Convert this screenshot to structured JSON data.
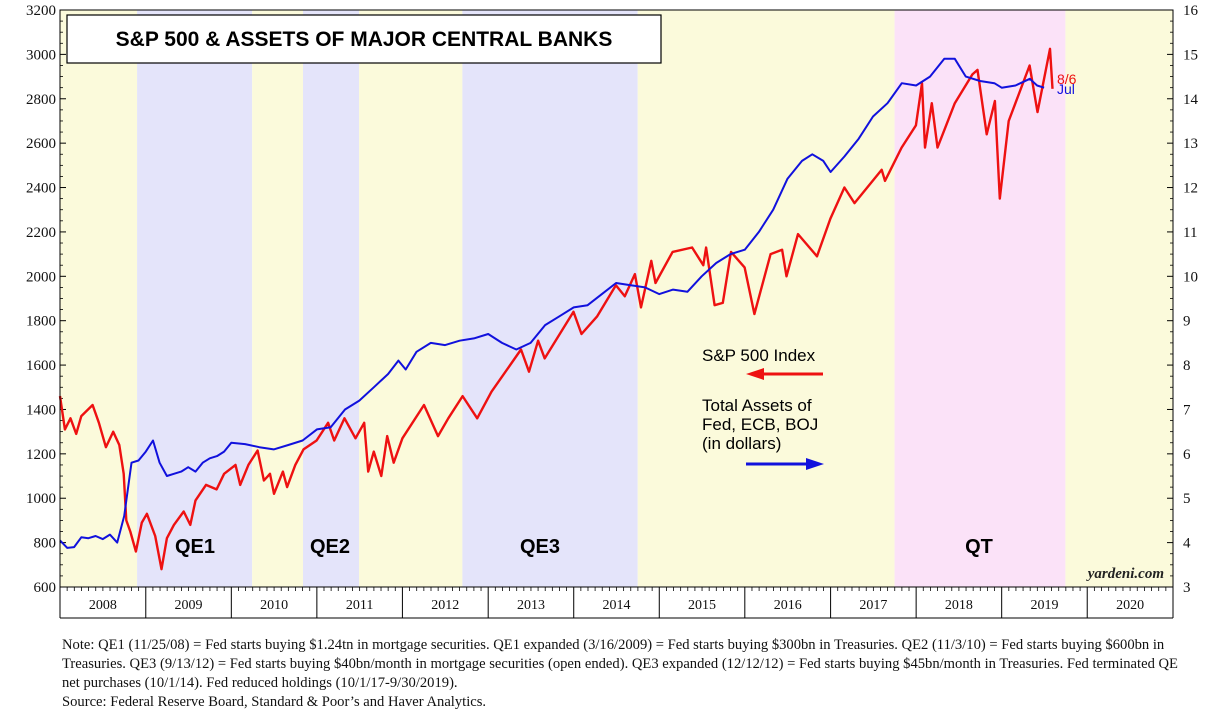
{
  "chart_data": {
    "type": "line",
    "title": "S&P 500 & ASSETS OF MAJOR CENTRAL BANKS",
    "credit": "yardeni.com",
    "x_range": [
      "2008-01-01",
      "2021-01-01"
    ],
    "x_tick_labels": [
      "2008",
      "2009",
      "2010",
      "2011",
      "2012",
      "2013",
      "2014",
      "2015",
      "2016",
      "2017",
      "2018",
      "2019",
      "2020"
    ],
    "left_axis": {
      "ylim": [
        600,
        3200
      ],
      "ticks": [
        600,
        800,
        1000,
        1200,
        1400,
        1600,
        1800,
        2000,
        2200,
        2400,
        2600,
        2800,
        3000,
        3200
      ]
    },
    "right_axis": {
      "ylim": [
        3,
        16
      ],
      "ticks": [
        3,
        4,
        5,
        6,
        7,
        8,
        9,
        10,
        11,
        12,
        13,
        14,
        15,
        16
      ]
    },
    "shaded_periods": [
      {
        "label": "",
        "start": "2008-01-01",
        "end": "2008-11-25",
        "color": "#fbfadb"
      },
      {
        "label": "QE1",
        "start": "2008-11-25",
        "end": "2010-03-31",
        "color": "#e4e4fa"
      },
      {
        "label": "",
        "start": "2010-03-31",
        "end": "2010-11-03",
        "color": "#fbfadb"
      },
      {
        "label": "QE2",
        "start": "2010-11-03",
        "end": "2011-06-30",
        "color": "#e4e4fa"
      },
      {
        "label": "",
        "start": "2011-06-30",
        "end": "2012-09-13",
        "color": "#fbfadb"
      },
      {
        "label": "QE3",
        "start": "2012-09-13",
        "end": "2014-10-01",
        "color": "#e4e4fa"
      },
      {
        "label": "",
        "start": "2014-10-01",
        "end": "2017-10-01",
        "color": "#fbfadb"
      },
      {
        "label": "QT",
        "start": "2017-10-01",
        "end": "2019-09-30",
        "color": "#fbe2f8"
      },
      {
        "label": "",
        "start": "2019-09-30",
        "end": "2021-01-01",
        "color": "#fbfadb"
      }
    ],
    "series": [
      {
        "name": "S&P 500 Index",
        "axis": "left",
        "color": "#ee1111",
        "end_label": "8/6",
        "points": [
          [
            "2008-01-01",
            1460
          ],
          [
            "2008-01-22",
            1310
          ],
          [
            "2008-02-15",
            1360
          ],
          [
            "2008-03-10",
            1290
          ],
          [
            "2008-04-01",
            1370
          ],
          [
            "2008-05-19",
            1420
          ],
          [
            "2008-06-15",
            1340
          ],
          [
            "2008-07-15",
            1230
          ],
          [
            "2008-08-15",
            1300
          ],
          [
            "2008-09-10",
            1240
          ],
          [
            "2008-09-29",
            1110
          ],
          [
            "2008-10-10",
            900
          ],
          [
            "2008-10-27",
            850
          ],
          [
            "2008-11-20",
            760
          ],
          [
            "2008-12-15",
            890
          ],
          [
            "2009-01-06",
            930
          ],
          [
            "2009-02-10",
            830
          ],
          [
            "2009-03-09",
            680
          ],
          [
            "2009-04-01",
            820
          ],
          [
            "2009-05-01",
            880
          ],
          [
            "2009-06-12",
            940
          ],
          [
            "2009-07-10",
            880
          ],
          [
            "2009-08-01",
            990
          ],
          [
            "2009-09-15",
            1060
          ],
          [
            "2009-10-30",
            1040
          ],
          [
            "2009-12-01",
            1110
          ],
          [
            "2010-01-19",
            1150
          ],
          [
            "2010-02-08",
            1060
          ],
          [
            "2010-03-15",
            1150
          ],
          [
            "2010-04-23",
            1215
          ],
          [
            "2010-05-20",
            1080
          ],
          [
            "2010-06-15",
            1110
          ],
          [
            "2010-07-02",
            1020
          ],
          [
            "2010-08-09",
            1120
          ],
          [
            "2010-08-27",
            1050
          ],
          [
            "2010-10-01",
            1150
          ],
          [
            "2010-11-05",
            1220
          ],
          [
            "2010-12-31",
            1260
          ],
          [
            "2011-02-18",
            1340
          ],
          [
            "2011-03-16",
            1260
          ],
          [
            "2011-04-29",
            1360
          ],
          [
            "2011-06-15",
            1270
          ],
          [
            "2011-07-22",
            1340
          ],
          [
            "2011-08-08",
            1120
          ],
          [
            "2011-09-01",
            1210
          ],
          [
            "2011-10-03",
            1100
          ],
          [
            "2011-10-28",
            1280
          ],
          [
            "2011-11-25",
            1160
          ],
          [
            "2012-01-01",
            1270
          ],
          [
            "2012-04-02",
            1420
          ],
          [
            "2012-06-01",
            1280
          ],
          [
            "2012-07-15",
            1360
          ],
          [
            "2012-09-14",
            1460
          ],
          [
            "2012-11-15",
            1360
          ],
          [
            "2013-01-15",
            1480
          ],
          [
            "2013-05-21",
            1670
          ],
          [
            "2013-06-24",
            1570
          ],
          [
            "2013-08-02",
            1710
          ],
          [
            "2013-08-30",
            1630
          ],
          [
            "2013-12-31",
            1840
          ],
          [
            "2014-02-03",
            1740
          ],
          [
            "2014-04-11",
            1820
          ],
          [
            "2014-06-30",
            1960
          ],
          [
            "2014-08-07",
            1910
          ],
          [
            "2014-09-19",
            2010
          ],
          [
            "2014-10-15",
            1860
          ],
          [
            "2014-11-28",
            2070
          ],
          [
            "2014-12-16",
            1970
          ],
          [
            "2015-02-27",
            2110
          ],
          [
            "2015-05-21",
            2130
          ],
          [
            "2015-07-08",
            2050
          ],
          [
            "2015-07-20",
            2130
          ],
          [
            "2015-08-25",
            1870
          ],
          [
            "2015-09-29",
            1880
          ],
          [
            "2015-11-03",
            2110
          ],
          [
            "2015-12-31",
            2040
          ],
          [
            "2016-02-11",
            1830
          ],
          [
            "2016-04-20",
            2100
          ],
          [
            "2016-06-08",
            2120
          ],
          [
            "2016-06-27",
            2000
          ],
          [
            "2016-08-15",
            2190
          ],
          [
            "2016-11-04",
            2090
          ],
          [
            "2016-12-31",
            2260
          ],
          [
            "2017-03-01",
            2400
          ],
          [
            "2017-04-13",
            2330
          ],
          [
            "2017-08-07",
            2480
          ],
          [
            "2017-08-21",
            2430
          ],
          [
            "2017-10-31",
            2580
          ],
          [
            "2017-12-31",
            2680
          ],
          [
            "2018-01-26",
            2870
          ],
          [
            "2018-02-08",
            2580
          ],
          [
            "2018-03-09",
            2780
          ],
          [
            "2018-04-02",
            2580
          ],
          [
            "2018-06-15",
            2780
          ],
          [
            "2018-08-29",
            2910
          ],
          [
            "2018-09-20",
            2930
          ],
          [
            "2018-10-29",
            2640
          ],
          [
            "2018-12-03",
            2790
          ],
          [
            "2018-12-24",
            2350
          ],
          [
            "2019-01-31",
            2700
          ],
          [
            "2019-04-30",
            2950
          ],
          [
            "2019-06-03",
            2740
          ],
          [
            "2019-07-26",
            3025
          ],
          [
            "2019-08-06",
            2845
          ]
        ]
      },
      {
        "name": "Total Assets of Fed, ECB, BOJ (in dollars)",
        "axis": "right",
        "color": "#1111dd",
        "end_label": "Jul",
        "points": [
          [
            "2008-01-01",
            4.05
          ],
          [
            "2008-02-01",
            3.88
          ],
          [
            "2008-03-01",
            3.9
          ],
          [
            "2008-04-01",
            4.12
          ],
          [
            "2008-05-01",
            4.1
          ],
          [
            "2008-06-01",
            4.15
          ],
          [
            "2008-07-01",
            4.08
          ],
          [
            "2008-08-01",
            4.18
          ],
          [
            "2008-09-01",
            4.0
          ],
          [
            "2008-10-01",
            4.6
          ],
          [
            "2008-11-01",
            5.8
          ],
          [
            "2008-12-01",
            5.85
          ],
          [
            "2009-01-01",
            6.05
          ],
          [
            "2009-02-01",
            6.3
          ],
          [
            "2009-03-01",
            5.8
          ],
          [
            "2009-04-01",
            5.5
          ],
          [
            "2009-05-01",
            5.55
          ],
          [
            "2009-06-01",
            5.6
          ],
          [
            "2009-07-01",
            5.7
          ],
          [
            "2009-08-01",
            5.6
          ],
          [
            "2009-09-01",
            5.8
          ],
          [
            "2009-10-01",
            5.9
          ],
          [
            "2009-11-01",
            5.95
          ],
          [
            "2009-12-01",
            6.05
          ],
          [
            "2010-01-01",
            6.25
          ],
          [
            "2010-03-01",
            6.22
          ],
          [
            "2010-05-01",
            6.15
          ],
          [
            "2010-07-01",
            6.1
          ],
          [
            "2010-09-01",
            6.2
          ],
          [
            "2010-11-01",
            6.3
          ],
          [
            "2011-01-01",
            6.55
          ],
          [
            "2011-03-01",
            6.6
          ],
          [
            "2011-05-01",
            7.0
          ],
          [
            "2011-07-01",
            7.2
          ],
          [
            "2011-09-01",
            7.5
          ],
          [
            "2011-11-01",
            7.8
          ],
          [
            "2011-12-15",
            8.1
          ],
          [
            "2012-01-15",
            7.9
          ],
          [
            "2012-03-01",
            8.3
          ],
          [
            "2012-05-01",
            8.5
          ],
          [
            "2012-07-01",
            8.45
          ],
          [
            "2012-09-01",
            8.55
          ],
          [
            "2012-11-01",
            8.6
          ],
          [
            "2013-01-01",
            8.7
          ],
          [
            "2013-03-01",
            8.5
          ],
          [
            "2013-05-01",
            8.35
          ],
          [
            "2013-07-01",
            8.5
          ],
          [
            "2013-09-01",
            8.9
          ],
          [
            "2013-11-01",
            9.1
          ],
          [
            "2014-01-01",
            9.3
          ],
          [
            "2014-03-01",
            9.35
          ],
          [
            "2014-05-01",
            9.6
          ],
          [
            "2014-07-01",
            9.85
          ],
          [
            "2014-09-01",
            9.8
          ],
          [
            "2014-11-01",
            9.75
          ],
          [
            "2015-01-01",
            9.6
          ],
          [
            "2015-03-01",
            9.7
          ],
          [
            "2015-05-01",
            9.65
          ],
          [
            "2015-07-01",
            10.0
          ],
          [
            "2015-09-01",
            10.3
          ],
          [
            "2015-11-01",
            10.5
          ],
          [
            "2016-01-01",
            10.6
          ],
          [
            "2016-03-01",
            11.0
          ],
          [
            "2016-05-01",
            11.5
          ],
          [
            "2016-07-01",
            12.2
          ],
          [
            "2016-09-01",
            12.6
          ],
          [
            "2016-10-15",
            12.75
          ],
          [
            "2016-12-01",
            12.6
          ],
          [
            "2017-01-01",
            12.35
          ],
          [
            "2017-03-01",
            12.7
          ],
          [
            "2017-05-01",
            13.1
          ],
          [
            "2017-07-01",
            13.6
          ],
          [
            "2017-09-01",
            13.9
          ],
          [
            "2017-11-01",
            14.35
          ],
          [
            "2018-01-01",
            14.3
          ],
          [
            "2018-03-01",
            14.5
          ],
          [
            "2018-05-01",
            14.9
          ],
          [
            "2018-06-15",
            14.9
          ],
          [
            "2018-08-01",
            14.5
          ],
          [
            "2018-10-01",
            14.4
          ],
          [
            "2018-12-01",
            14.35
          ],
          [
            "2019-01-01",
            14.25
          ],
          [
            "2019-03-01",
            14.3
          ],
          [
            "2019-05-01",
            14.45
          ],
          [
            "2019-06-01",
            14.3
          ],
          [
            "2019-07-01",
            14.25
          ]
        ]
      }
    ],
    "annotations": [
      {
        "text": "S&P 500 Index",
        "arrow": "left",
        "color": "#ee1111"
      },
      {
        "text": "Total Assets of\nFed, ECB, BOJ\n(in dollars)",
        "arrow": "right",
        "color": "#1111dd"
      }
    ]
  },
  "note": "Note: QE1 (11/25/08) = Fed starts buying $1.24tn in mortgage securities. QE1 expanded (3/16/2009) = Fed starts buying $300bn in Treasuries. QE2 (11/3/10) = Fed starts buying $600bn in Treasuries. QE3 (9/13/12) = Fed starts buying $40bn/month in mortgage securities (open ended). QE3 expanded (12/12/12) = Fed starts buying $45bn/month in Treasuries. Fed terminated QE net purchases (10/1/14). Fed reduced holdings (10/1/17-9/30/2019).",
  "source": "Source: Federal Reserve Board, Standard & Poor’s and Haver Analytics."
}
